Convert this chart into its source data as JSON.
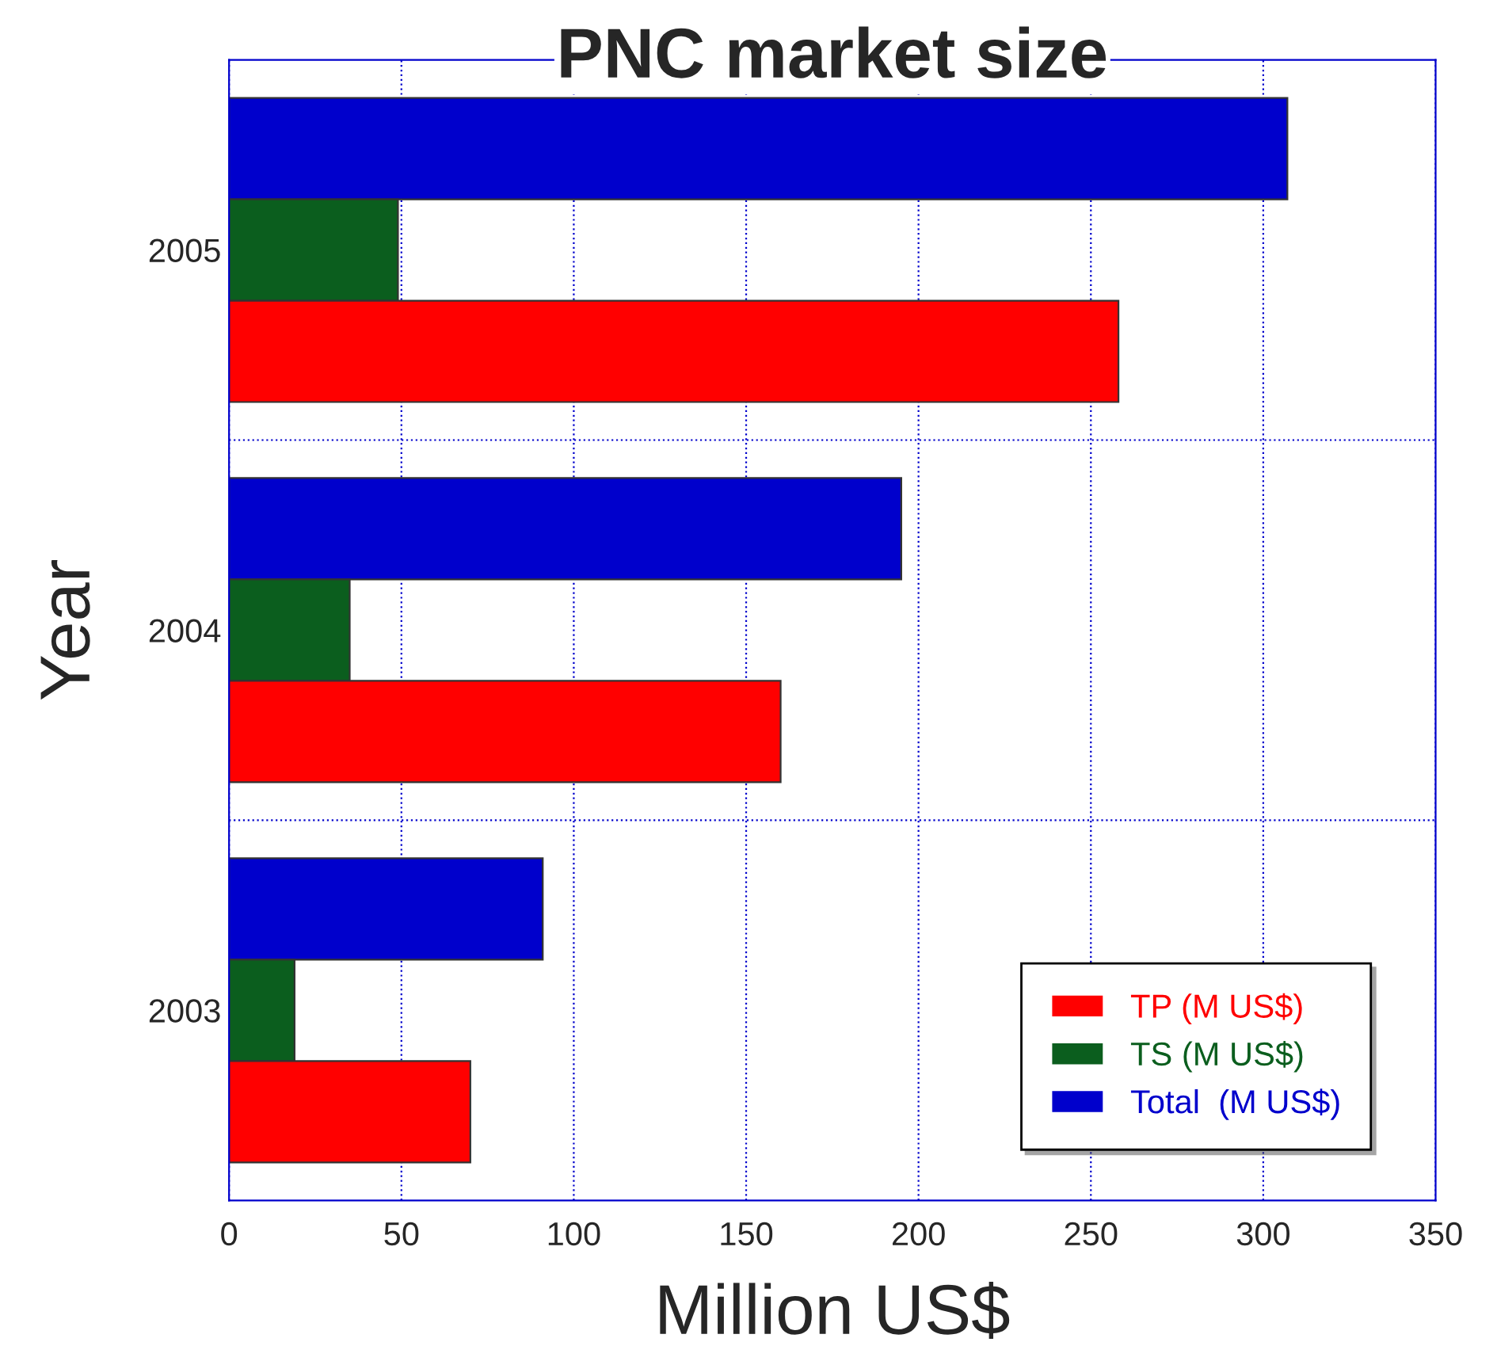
{
  "chart_data": {
    "type": "bar",
    "orientation": "horizontal",
    "title": "PNC market size",
    "xlabel": "Million US$",
    "ylabel": "Year",
    "categories": [
      "2005",
      "2004",
      "2003"
    ],
    "series": [
      {
        "name": "Total  (M US$)",
        "color": "#0000cc",
        "values": [
          307,
          195,
          91
        ]
      },
      {
        "name": "TS (M US$)",
        "color": "#0b5e1e",
        "values": [
          49,
          35,
          19
        ]
      },
      {
        "name": "TP (M US$)",
        "color": "#ff0000",
        "values": [
          258,
          160,
          70
        ]
      }
    ],
    "xlim": [
      0,
      350
    ],
    "xticks": [
      0,
      50,
      100,
      150,
      200,
      250,
      300,
      350
    ],
    "grid": true,
    "legend": "bottom right"
  }
}
